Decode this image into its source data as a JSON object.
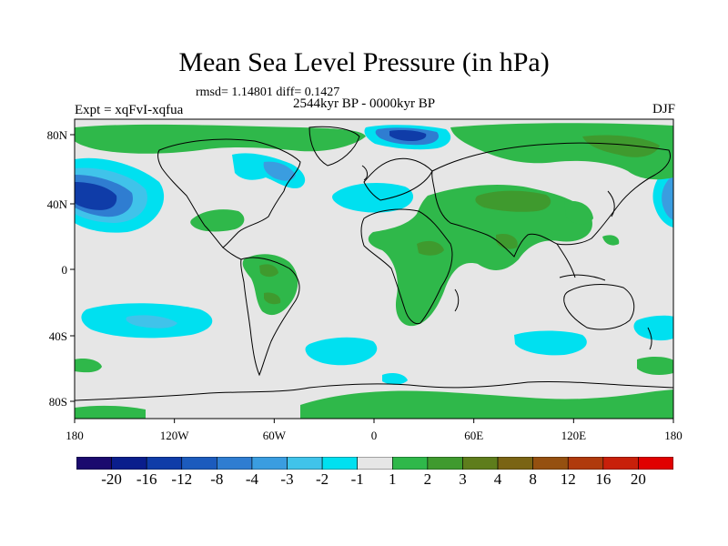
{
  "title": "Mean Sea Level Pressure (in hPa)",
  "stats_line": "rmsd= 1.14801 diff= 0.1427",
  "period_line": "2544kyr BP - 0000kyr BP",
  "experiment_line": "Expt = xqFvI-xqfua",
  "season": "DJF",
  "y_axis_labels": [
    "80N",
    "40N",
    "0",
    "40S",
    "80S"
  ],
  "x_axis_labels": [
    "180",
    "120W",
    "60W",
    "0",
    "60E",
    "120E",
    "180"
  ],
  "colorbar": {
    "labels": [
      "-20",
      "-16",
      "-12",
      "-8",
      "-4",
      "-3",
      "-2",
      "-1",
      "1",
      "2",
      "3",
      "4",
      "8",
      "12",
      "16",
      "20"
    ],
    "colors": [
      "#1b0a6e",
      "#0a1e8c",
      "#0f3ca8",
      "#1c5bbd",
      "#2f7dd1",
      "#3a9de0",
      "#40c3ea",
      "#00e0f0",
      "#e6e6e6",
      "#2fb84a",
      "#3f9a2e",
      "#5e7d1c",
      "#7a6414",
      "#955010",
      "#b03a0c",
      "#c8200a",
      "#e00000"
    ]
  },
  "map_colors": {
    "background": "#e6e6e6",
    "neg_1": "#00e0f0",
    "neg_2": "#40c3ea",
    "neg_3": "#3a9de0",
    "neg_4": "#2f7dd1",
    "neg_8": "#1c5bbd",
    "neg_12": "#0f3ca8",
    "pos_1": "#2fb84a",
    "pos_2": "#3f9a2e",
    "pos_3": "#5e7d1c",
    "coast": "#000000"
  }
}
